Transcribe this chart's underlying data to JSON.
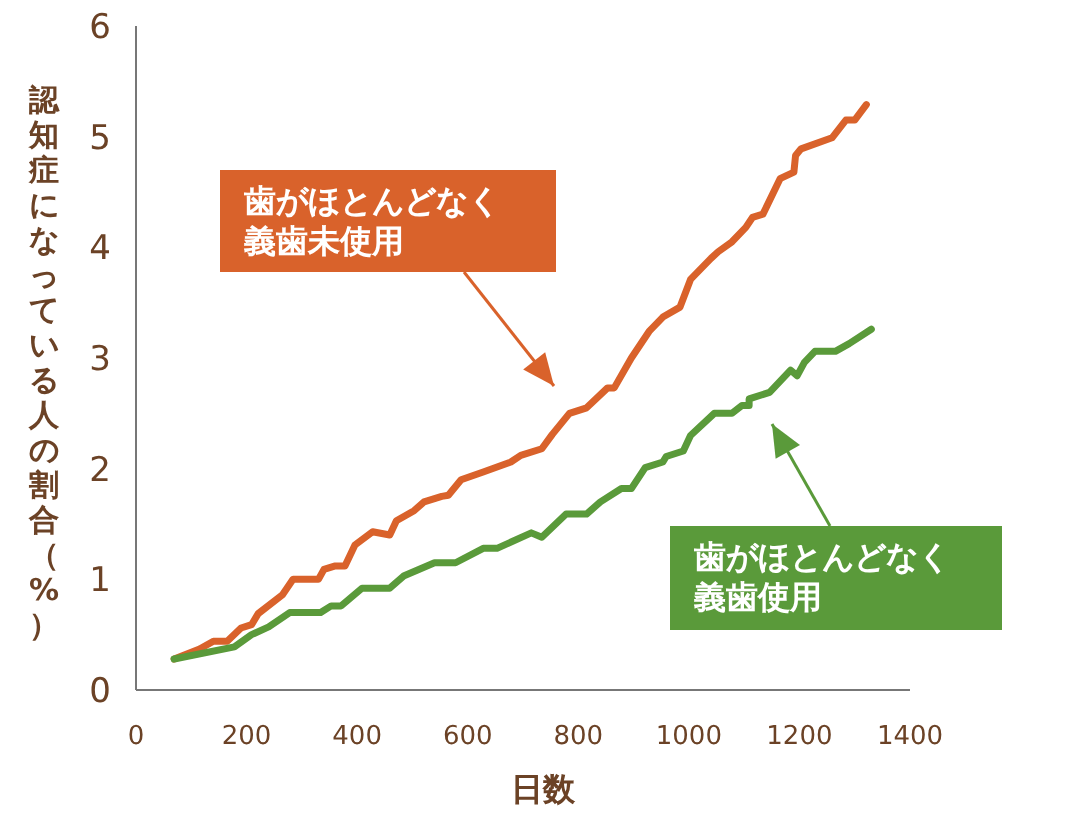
{
  "chart_data": {
    "type": "line",
    "xlabel": "日数",
    "ylabel": "認知症になっている人の割合（%）",
    "xlim": [
      0,
      1400
    ],
    "xticks": [
      0,
      200,
      400,
      600,
      800,
      1000,
      1200,
      1400
    ],
    "ylim": [
      0,
      6
    ],
    "yticks": [
      0,
      1,
      2,
      3,
      4,
      5,
      6
    ],
    "grid": false,
    "marker": "none",
    "line_style": "solid",
    "series": [
      {
        "name": "歯がほとんどなく義歯未使用",
        "color": "#d9622b",
        "x": [
          69,
          115,
          140,
          165,
          190,
          209,
          221,
          265,
          284,
          330,
          340,
          359,
          378,
          396,
          428,
          459,
          471,
          503,
          521,
          553,
          565,
          588,
          628,
          678,
          696,
          734,
          753,
          784,
          815,
          853,
          865,
          896,
          928,
          953,
          984,
          1003,
          1040,
          1053,
          1078,
          1103,
          1115,
          1134,
          1165,
          1190,
          1193,
          1203,
          1259,
          1284,
          1300,
          1321
        ],
        "values": [
          0.28,
          0.37,
          0.44,
          0.44,
          0.56,
          0.59,
          0.69,
          0.86,
          1.0,
          1.0,
          1.09,
          1.12,
          1.12,
          1.31,
          1.43,
          1.4,
          1.53,
          1.62,
          1.7,
          1.75,
          1.76,
          1.9,
          1.97,
          2.06,
          2.12,
          2.18,
          2.31,
          2.5,
          2.55,
          2.73,
          2.73,
          3.0,
          3.24,
          3.37,
          3.46,
          3.71,
          3.9,
          3.96,
          4.05,
          4.18,
          4.27,
          4.3,
          4.62,
          4.68,
          4.83,
          4.89,
          4.99,
          5.15,
          5.15,
          5.29
        ]
      },
      {
        "name": "歯がほとんどなく義歯使用",
        "color": "#5a9a3a",
        "x": [
          69,
          178,
          209,
          240,
          278,
          334,
          353,
          371,
          409,
          459,
          484,
          540,
          578,
          628,
          653,
          715,
          734,
          778,
          815,
          840,
          878,
          896,
          921,
          953,
          959,
          990,
          1003,
          1046,
          1078,
          1096,
          1109,
          1109,
          1146,
          1184,
          1196,
          1209,
          1228,
          1265,
          1290,
          1330
        ],
        "values": [
          0.28,
          0.39,
          0.5,
          0.57,
          0.7,
          0.7,
          0.76,
          0.76,
          0.92,
          0.92,
          1.03,
          1.15,
          1.15,
          1.28,
          1.28,
          1.42,
          1.38,
          1.59,
          1.59,
          1.7,
          1.82,
          1.82,
          2.01,
          2.06,
          2.11,
          2.16,
          2.3,
          2.5,
          2.5,
          2.57,
          2.57,
          2.63,
          2.69,
          2.89,
          2.84,
          2.96,
          3.06,
          3.06,
          3.13,
          3.26
        ]
      }
    ]
  }
}
